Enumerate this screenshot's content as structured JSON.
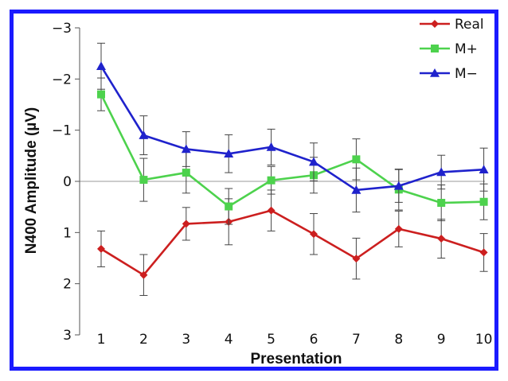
{
  "chart_data": {
    "type": "line",
    "title": "",
    "xlabel": "Presentation",
    "ylabel": "N400 Amplitude (µV)",
    "x": [
      1,
      2,
      3,
      4,
      5,
      6,
      7,
      8,
      9,
      10
    ],
    "xticks": [
      "1",
      "2",
      "3",
      "4",
      "5",
      "6",
      "7",
      "8",
      "9",
      "10"
    ],
    "ylim": [
      3,
      -3
    ],
    "y_inverted": true,
    "yticks": [
      "−3",
      "−2",
      "−1",
      "0",
      "1",
      "2",
      "3"
    ],
    "zero_line": true,
    "grid": false,
    "legend_position": "top-right",
    "series": [
      {
        "name": "Real",
        "color": "#cc1f1f",
        "marker": "diamond",
        "values": [
          1.32,
          1.83,
          0.83,
          0.79,
          0.57,
          1.03,
          1.51,
          0.93,
          1.12,
          1.39
        ],
        "error": [
          0.35,
          0.4,
          0.32,
          0.45,
          0.4,
          0.4,
          0.4,
          0.35,
          0.38,
          0.37
        ]
      },
      {
        "name": "M+",
        "color": "#4dd24d",
        "marker": "square",
        "values": [
          -1.7,
          -0.03,
          -0.17,
          0.49,
          -0.02,
          -0.12,
          -0.43,
          0.16,
          0.42,
          0.4
        ],
        "error": [
          0.32,
          0.42,
          0.4,
          0.35,
          0.27,
          0.35,
          0.4,
          0.4,
          0.35,
          0.35
        ]
      },
      {
        "name": "M−",
        "color": "#1f22cc",
        "marker": "triangle",
        "values": [
          -2.25,
          -0.9,
          -0.63,
          -0.54,
          -0.67,
          -0.38,
          0.17,
          0.09,
          -0.18,
          -0.23
        ],
        "error": [
          0.45,
          0.38,
          0.34,
          0.37,
          0.35,
          0.37,
          0.43,
          0.32,
          0.33,
          0.42
        ]
      }
    ]
  }
}
